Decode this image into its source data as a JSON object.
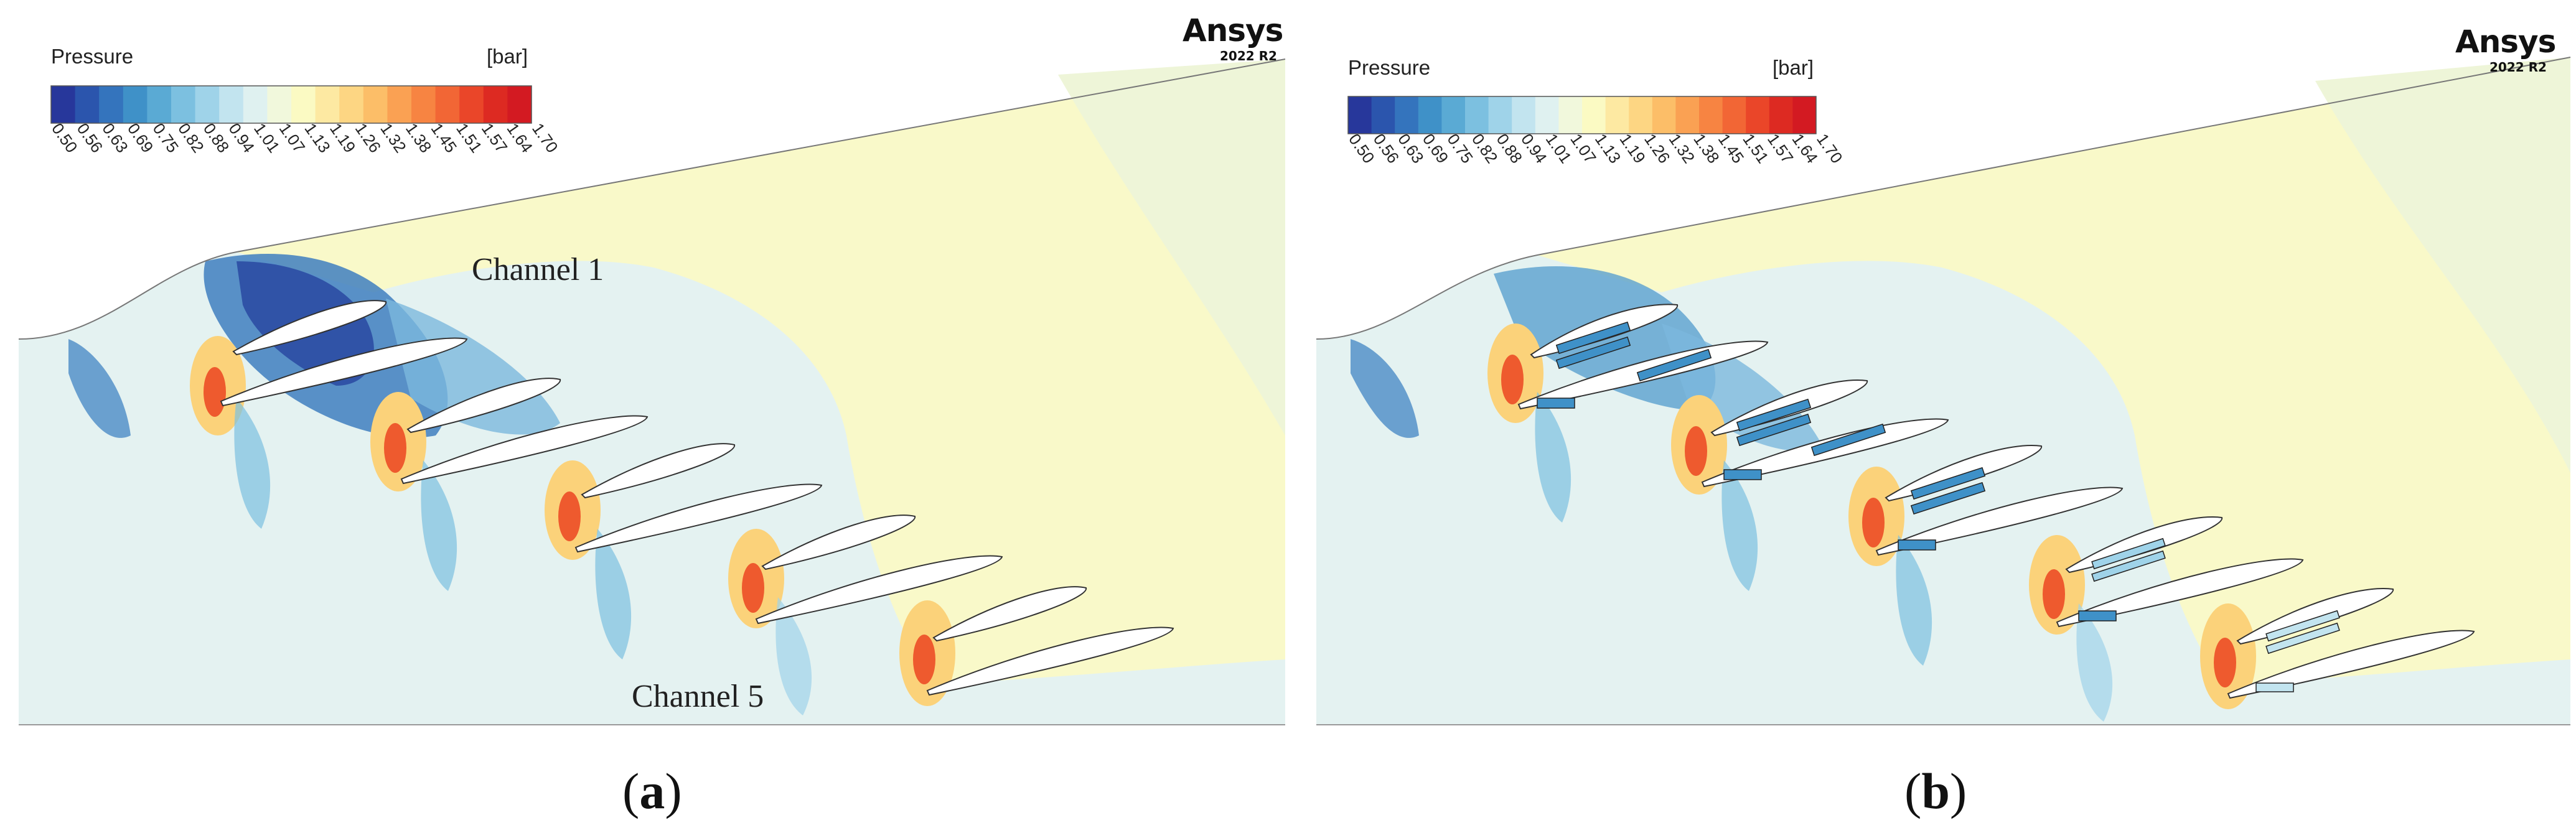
{
  "legend": {
    "title": "Pressure",
    "unit": "[bar]",
    "ticks": [
      "0.50",
      "0.56",
      "0.63",
      "0.69",
      "0.75",
      "0.82",
      "0.88",
      "0.94",
      "1.01",
      "1.07",
      "1.13",
      "1.19",
      "1.26",
      "1.32",
      "1.38",
      "1.45",
      "1.51",
      "1.57",
      "1.64",
      "1.70"
    ],
    "colors": [
      "#27379b",
      "#2b55ad",
      "#3474bd",
      "#3f91c8",
      "#5aaad4",
      "#7cc0e0",
      "#9fd3e9",
      "#c2e4ef",
      "#dff1f0",
      "#f1f8dc",
      "#fbfac3",
      "#fde9a2",
      "#fdd683",
      "#fcbe68",
      "#faa153",
      "#f78442",
      "#f26635",
      "#ea4629",
      "#dd2a22",
      "#d31a22"
    ]
  },
  "brand": {
    "name": "Ansys",
    "version": "2022 R2"
  },
  "panels": [
    {
      "id": "a",
      "caption": "a",
      "channel_labels": [
        "Channel 1",
        "Channel 5"
      ]
    },
    {
      "id": "b",
      "caption": "b",
      "channel_labels": []
    }
  ]
}
